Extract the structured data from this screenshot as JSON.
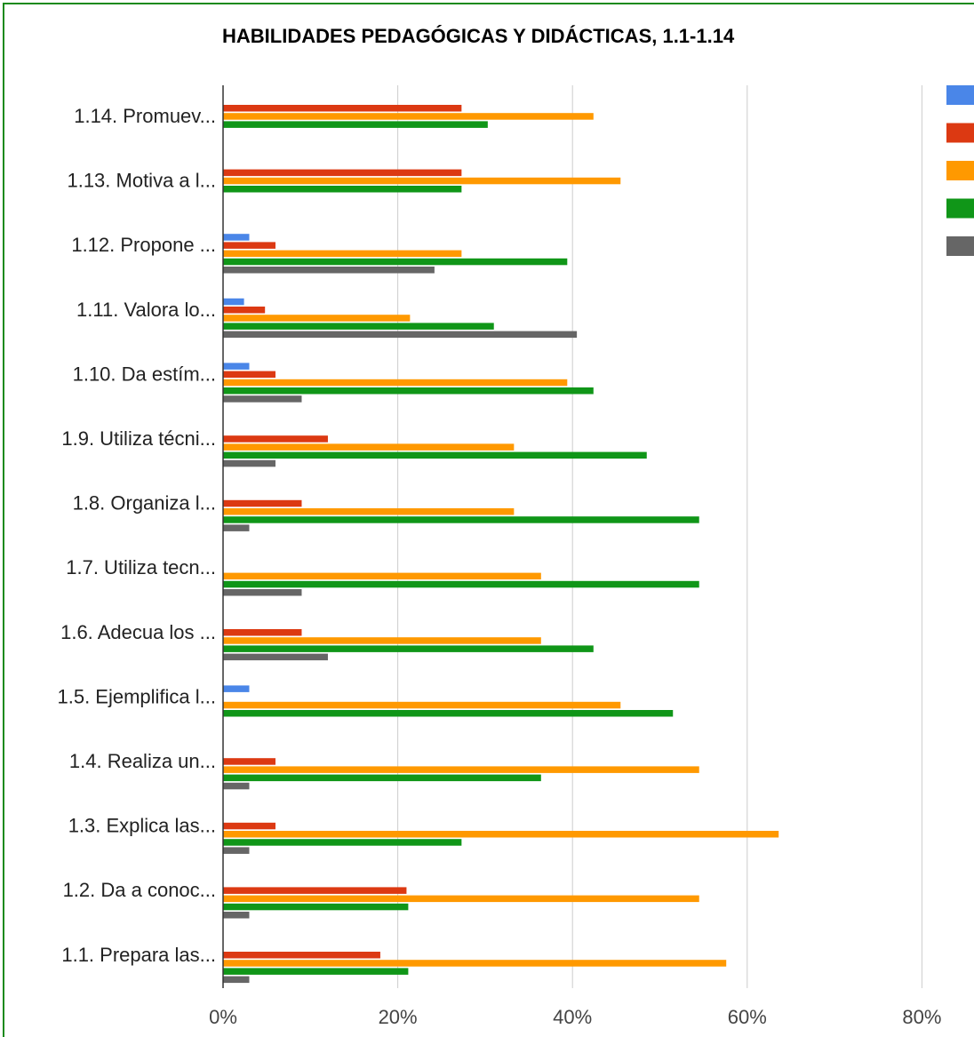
{
  "chart_data": {
    "type": "bar",
    "orientation": "horizontal",
    "title": "HABILIDADES PEDAGÓGICAS Y DIDÁCTICAS, 1.1-1.14",
    "xlabel": "",
    "ylabel": "",
    "xlim": [
      0,
      80
    ],
    "x_ticks": [
      "0%",
      "20%",
      "40%",
      "60%",
      "80%"
    ],
    "grid": true,
    "legend_position": "right",
    "categories": [
      "1.14.   Promuev...",
      "1.13.   Motiva a l...",
      "1.12.   Propone ...",
      "1.11.   Valora lo...",
      "1.10.   Da estím...",
      "1.9.  Utiliza técni...",
      "1.8.  Organiza l...",
      "1.7. Utiliza tecn...",
      "1.6. Adecua los ...",
      "1.5. Ejemplifica l...",
      "1.4.   Realiza un...",
      "1.3.   Explica las...",
      "1.2. Da a conoc...",
      "1.1. Prepara las..."
    ],
    "series": [
      {
        "color": "#4a86e8",
        "values": [
          0,
          0,
          3,
          2.4,
          3,
          0,
          0,
          0,
          0,
          3,
          0,
          0,
          0,
          0
        ]
      },
      {
        "color": "#dc3912",
        "values": [
          27.3,
          27.3,
          6,
          4.8,
          6,
          12,
          9,
          0,
          9,
          0,
          6,
          6,
          21,
          18
        ]
      },
      {
        "color": "#ff9900",
        "values": [
          42.4,
          45.5,
          27.3,
          21.4,
          39.4,
          33.3,
          33.3,
          36.4,
          36.4,
          45.5,
          54.5,
          63.6,
          54.5,
          57.6
        ]
      },
      {
        "color": "#109618",
        "values": [
          30.3,
          27.3,
          39.4,
          31,
          42.4,
          48.5,
          54.5,
          54.5,
          42.4,
          51.5,
          36.4,
          27.3,
          21.2,
          21.2
        ]
      },
      {
        "color": "#666666",
        "values": [
          0,
          0,
          24.2,
          40.5,
          9,
          6,
          3,
          9,
          12,
          0,
          3,
          3,
          3,
          3
        ]
      }
    ]
  }
}
